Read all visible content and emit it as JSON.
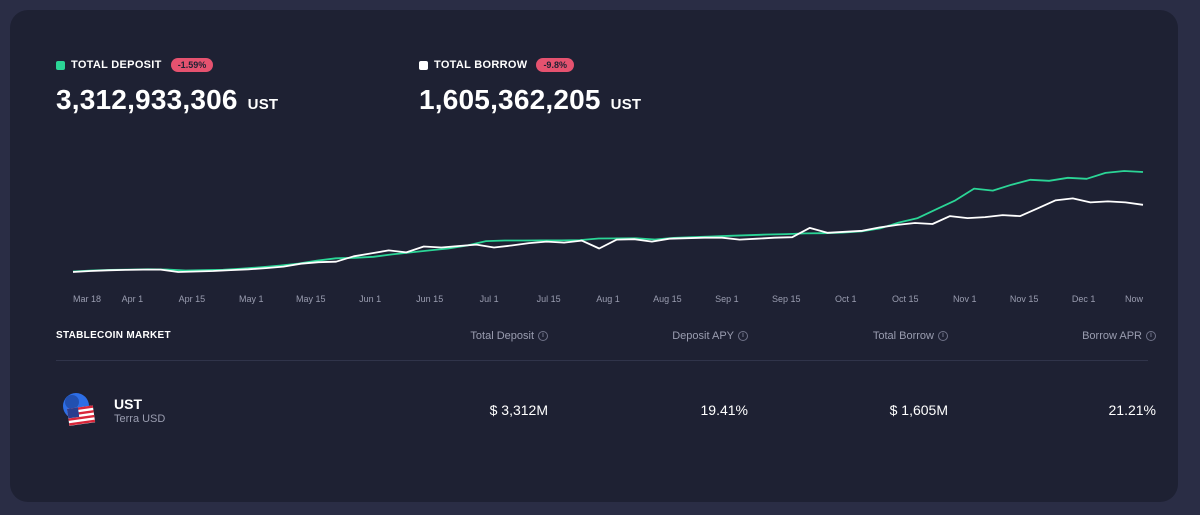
{
  "colors": {
    "deposit": "#2bd596",
    "borrow": "#ffffff",
    "badge": "#e5526f",
    "background": "#1e2133"
  },
  "summary": {
    "deposit": {
      "label": "TOTAL DEPOSIT",
      "change": "-1.59%",
      "value": "3,312,933,306",
      "unit": "UST"
    },
    "borrow": {
      "label": "TOTAL BORROW",
      "change": "-9.8%",
      "value": "1,605,362,205",
      "unit": "UST"
    }
  },
  "chart_data": {
    "type": "line",
    "x_ticks": [
      "Mar 18",
      "Apr 1",
      "Apr 15",
      "May 1",
      "May 15",
      "Jun 1",
      "Jun 15",
      "Jul 1",
      "Jul 15",
      "Aug 1",
      "Aug 15",
      "Sep 1",
      "Sep 15",
      "Oct 1",
      "Oct 15",
      "Nov 1",
      "Nov 15",
      "Dec 1",
      "Now"
    ],
    "y_axis_shown": false,
    "series": [
      {
        "key": "deposit",
        "values": [
          0.15,
          0.25,
          0.32,
          0.35,
          0.38,
          0.36,
          0.25,
          0.3,
          0.33,
          0.45,
          0.58,
          0.75,
          0.95,
          1.25,
          1.5,
          1.55,
          1.65,
          1.9,
          2.1,
          2.3,
          2.5,
          2.8,
          3.25,
          3.31,
          3.31,
          3.32,
          3.32,
          3.35,
          3.52,
          3.53,
          3.54,
          3.42,
          3.58,
          3.65,
          3.72,
          3.79,
          3.85,
          3.92,
          3.97,
          4.04,
          4.06,
          4.12,
          4.24,
          4.55,
          5.15,
          5.6,
          6.5,
          7.4,
          8.6,
          8.4,
          9.0,
          9.5,
          9.4,
          9.7,
          9.6,
          10.2,
          10.4,
          10.3
        ]
      },
      {
        "key": "borrow",
        "values": [
          0.1,
          0.2,
          0.28,
          0.32,
          0.35,
          0.35,
          0.1,
          0.15,
          0.2,
          0.3,
          0.38,
          0.5,
          0.65,
          0.95,
          1.1,
          1.15,
          1.7,
          2.0,
          2.3,
          2.1,
          2.7,
          2.6,
          2.75,
          2.9,
          2.6,
          2.8,
          3.05,
          3.2,
          3.1,
          3.3,
          2.5,
          3.4,
          3.45,
          3.2,
          3.5,
          3.55,
          3.6,
          3.6,
          3.4,
          3.5,
          3.6,
          3.65,
          4.6,
          4.1,
          4.2,
          4.3,
          4.65,
          4.9,
          5.1,
          5.0,
          5.8,
          5.6,
          5.7,
          5.9,
          5.8,
          6.6,
          7.4,
          7.6,
          7.2,
          7.3,
          7.2,
          6.95
        ]
      }
    ]
  },
  "market": {
    "title": "STABLECOIN MARKET",
    "columns": [
      "Total Deposit",
      "Deposit APY",
      "Total Borrow",
      "Borrow APR"
    ],
    "info_icon": "i",
    "rows": [
      {
        "symbol": "UST",
        "name": "Terra USD",
        "total_deposit": "$ 3,312M",
        "deposit_apy": "19.41%",
        "total_borrow": "$ 1,605M",
        "borrow_apr": "21.21%"
      }
    ]
  }
}
